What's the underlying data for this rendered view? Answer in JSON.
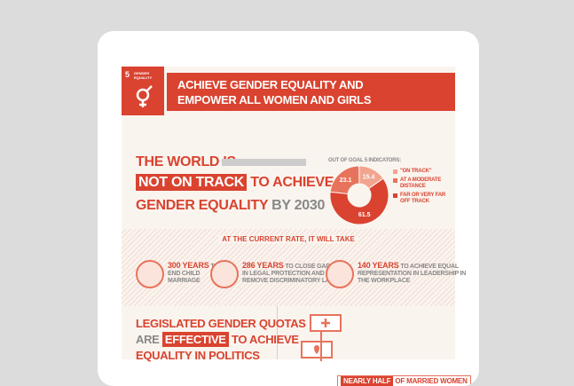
{
  "header": {
    "goal_number": "5",
    "goal_label": "GENDER EQUALITY",
    "title_line1": "ACHIEVE GENDER EQUALITY AND",
    "title_line2": "EMPOWER ALL WOMEN AND GIRLS"
  },
  "status": {
    "line1": "THE WORLD IS",
    "highlight": "NOT ON TRACK",
    "line2_rest": "TO ACHIEVE",
    "line3": "GENDER EQUALITY",
    "line3_rest": "BY 2030"
  },
  "donut": {
    "title": "OUT OF GOAL 5 INDICATORS:",
    "segments": [
      {
        "label": "\"ON TRACK\"",
        "value": 15.4,
        "color": "#f2a48e"
      },
      {
        "label": "AT A MODERATE DISTANCE",
        "value": 23.1,
        "color": "#e8735c"
      },
      {
        "label": "FAR OR VERY FAR OFF TRACK",
        "value": 61.5,
        "color": "#d9432f"
      }
    ]
  },
  "rate": {
    "heading": "AT THE CURRENT RATE, IT WILL TAKE",
    "items": [
      {
        "years": "300 YEARS",
        "text": "TO END CHILD MARRIAGE"
      },
      {
        "years": "286 YEARS",
        "text": "TO CLOSE GAPS IN LEGAL PROTECTION AND REMOVE DISCRIMINATORY LAWS"
      },
      {
        "years": "140 YEARS",
        "text": "TO ACHIEVE EQUAL REPRESENTATION IN LEADERSHIP IN THE WORKPLACE"
      }
    ]
  },
  "quotas": {
    "line1": "LEGISLATED GENDER QUOTAS",
    "line2_pre": "ARE",
    "highlight": "EFFECTIVE",
    "line2_post": "TO ACHIEVE",
    "line3": "EQUALITY IN POLITICS"
  },
  "marriage": {
    "highlight": "NEARLY HALF",
    "rest": "OF MARRIED WOMEN"
  }
}
